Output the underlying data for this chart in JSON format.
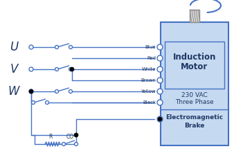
{
  "bg_color": "#ffffff",
  "line_color": "#4472c4",
  "dark_blue": "#1f3864",
  "motor_fill": "#c5d9f1",
  "motor_stroke": "#4472c4",
  "phase_labels": [
    "U",
    "V",
    "W"
  ],
  "wire_labels": [
    "Blue",
    "Red",
    "White",
    "Brown",
    "Yellow",
    "Black"
  ],
  "motor_text1": "Induction",
  "motor_text2": "Motor",
  "motor_text3": "230 VAC",
  "motor_text4": "Three Phase",
  "brake_text1": "Electromagnetic",
  "brake_text2": "Brake",
  "r_label": "R",
  "co_label": "CO",
  "figw": 3.51,
  "figh": 2.31,
  "dpi": 100
}
